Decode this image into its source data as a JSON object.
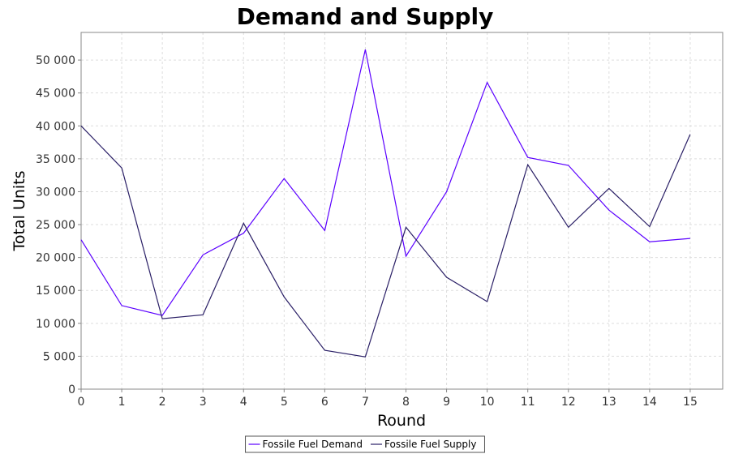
{
  "chart_data": {
    "type": "line",
    "title": "Demand and Supply",
    "xlabel": "Round",
    "ylabel": "Total Units",
    "x": [
      0,
      1,
      2,
      3,
      4,
      5,
      6,
      7,
      8,
      9,
      10,
      11,
      12,
      13,
      14,
      15
    ],
    "xlim": [
      0,
      15.8
    ],
    "ylim": [
      0,
      54200
    ],
    "x_ticks": [
      "0",
      "1",
      "2",
      "3",
      "4",
      "5",
      "6",
      "7",
      "8",
      "9",
      "10",
      "11",
      "12",
      "13",
      "14",
      "15"
    ],
    "y_ticks": [
      {
        "value": 0,
        "label": "0"
      },
      {
        "value": 5000,
        "label": "5 000"
      },
      {
        "value": 10000,
        "label": "10 000"
      },
      {
        "value": 15000,
        "label": "15 000"
      },
      {
        "value": 20000,
        "label": "20 000"
      },
      {
        "value": 25000,
        "label": "25 000"
      },
      {
        "value": 30000,
        "label": "30 000"
      },
      {
        "value": 35000,
        "label": "35 000"
      },
      {
        "value": 40000,
        "label": "40 000"
      },
      {
        "value": 45000,
        "label": "45 000"
      },
      {
        "value": 50000,
        "label": "50 000"
      }
    ],
    "grid": true,
    "legend_position": "bottom-center",
    "series": [
      {
        "name": "Fossile Fuel Demand",
        "color": "#5b00ff",
        "values": [
          22700,
          12700,
          11200,
          20400,
          23700,
          32000,
          24100,
          51600,
          20200,
          30000,
          46600,
          35200,
          34000,
          27200,
          22400,
          22900
        ]
      },
      {
        "name": "Fossile Fuel Supply",
        "color": "#2a1f66",
        "values": [
          40000,
          33600,
          10700,
          11300,
          25200,
          14000,
          5900,
          4900,
          24600,
          17000,
          13300,
          34100,
          24600,
          30500,
          24700,
          38700
        ]
      }
    ]
  }
}
